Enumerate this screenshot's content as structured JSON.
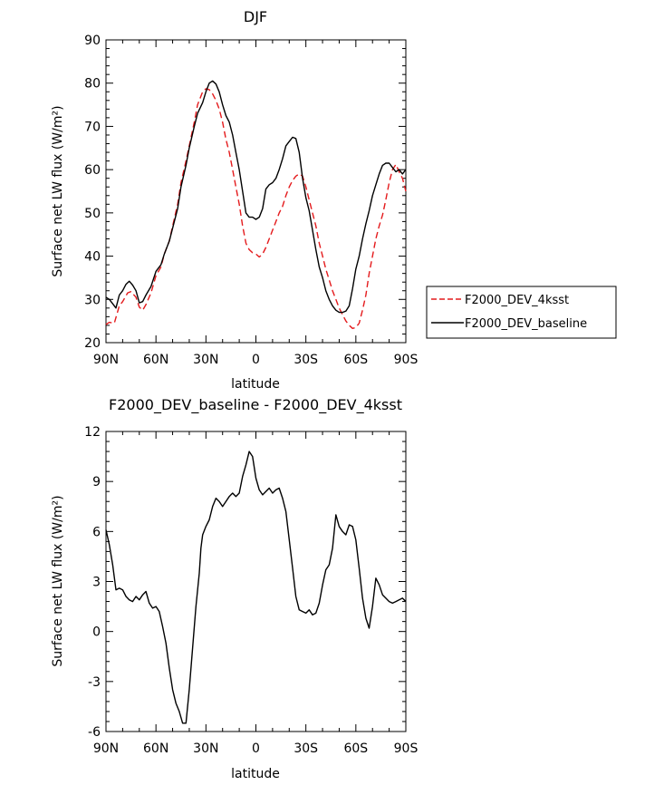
{
  "chart_data": [
    {
      "type": "line",
      "title": "DJF",
      "xlabel": "latitude",
      "ylabel": "Surface net LW flux (W/m²)",
      "ylim": [
        20,
        90
      ],
      "yticks": [
        20,
        30,
        40,
        50,
        60,
        70,
        80,
        90
      ],
      "xlim": [
        90,
        -90
      ],
      "xticks": [
        90,
        60,
        30,
        0,
        -30,
        -60,
        -90
      ],
      "xtick_labels": [
        "90N",
        "60N",
        "30N",
        "0",
        "30S",
        "60S",
        "90S"
      ],
      "legend_placement": "right",
      "series": [
        {
          "name": "F2000_DEV_4ksst",
          "color": "#e41a1c",
          "dash": "dashed",
          "x": [
            90,
            88,
            85,
            82,
            80,
            77,
            75,
            72,
            70,
            68,
            66,
            63,
            60,
            57,
            55,
            52,
            50,
            47,
            45,
            42,
            40,
            37,
            35,
            32,
            30,
            28,
            26,
            24,
            22,
            20,
            18,
            16,
            14,
            12,
            10,
            8,
            6,
            4,
            2,
            0,
            -2,
            -4,
            -6,
            -8,
            -10,
            -12,
            -14,
            -16,
            -18,
            -20,
            -22,
            -24,
            -26,
            -28,
            -30,
            -32,
            -34,
            -36,
            -38,
            -40,
            -42,
            -44,
            -46,
            -48,
            -50,
            -52,
            -54,
            -56,
            -58,
            -60,
            -62,
            -64,
            -66,
            -68,
            -70,
            -72,
            -74,
            -76,
            -78,
            -80,
            -82,
            -84,
            -86,
            -88,
            -90
          ],
          "y": [
            24.2,
            24.7,
            24.5,
            28.5,
            29.5,
            31.5,
            31.8,
            30.5,
            28.2,
            27.5,
            28.8,
            31.5,
            35.5,
            37.5,
            40.5,
            43.5,
            47,
            52,
            57,
            62,
            65.5,
            71,
            75,
            78,
            78.7,
            78.5,
            77.5,
            76,
            74,
            71,
            67,
            64,
            60,
            56,
            52,
            47,
            43,
            41.5,
            40.8,
            40.5,
            39.8,
            40.5,
            42,
            44,
            46,
            48,
            50,
            51.5,
            54,
            56,
            57.5,
            58.5,
            59,
            58.5,
            56,
            53,
            50,
            47,
            43,
            40,
            37,
            34.5,
            32,
            30,
            28,
            26.5,
            25,
            24,
            23.3,
            23.5,
            24.5,
            27.5,
            31,
            36,
            40,
            44,
            47,
            49.5,
            53,
            57,
            60,
            61.2,
            59.5,
            58,
            55
          ]
        },
        {
          "name": "F2000_DEV_baseline",
          "color": "#000000",
          "dash": "solid",
          "x": [
            90,
            88,
            86,
            84,
            82,
            80,
            78,
            76,
            74,
            72,
            70,
            68,
            66,
            63,
            60,
            57,
            55,
            52,
            50,
            47,
            45,
            42,
            40,
            37,
            35,
            32,
            30,
            28,
            26,
            24,
            22,
            20,
            18,
            16,
            14,
            12,
            10,
            8,
            6,
            4,
            2,
            0,
            -2,
            -4,
            -6,
            -8,
            -10,
            -12,
            -14,
            -16,
            -18,
            -20,
            -22,
            -24,
            -26,
            -28,
            -30,
            -32,
            -34,
            -36,
            -38,
            -40,
            -42,
            -44,
            -46,
            -48,
            -50,
            -52,
            -54,
            -56,
            -58,
            -60,
            -62,
            -64,
            -66,
            -68,
            -70,
            -72,
            -74,
            -76,
            -78,
            -80,
            -82,
            -84,
            -86,
            -88,
            -90
          ],
          "y": [
            30.5,
            30,
            29,
            28,
            31,
            32,
            33.5,
            34.2,
            33.3,
            32,
            29.2,
            29.5,
            31,
            33,
            36.5,
            38,
            40.5,
            43.5,
            46.5,
            51,
            56,
            61,
            65,
            70,
            73,
            75.5,
            78,
            80,
            80.5,
            79.8,
            78,
            75,
            72.5,
            71,
            68,
            64,
            60,
            55,
            50,
            49,
            49,
            48.5,
            49,
            51,
            55.5,
            56.5,
            57,
            58,
            60,
            62.5,
            65.5,
            66.5,
            67.5,
            67.2,
            64,
            58,
            53.5,
            50.5,
            46,
            41.5,
            37.5,
            35,
            32,
            30,
            28.5,
            27.5,
            27,
            27,
            27.3,
            28.5,
            32.5,
            37,
            40,
            44,
            47.5,
            50.5,
            54,
            56.5,
            59,
            61,
            61.5,
            61.5,
            60.5,
            59.5,
            60,
            59,
            60
          ]
        }
      ]
    },
    {
      "type": "line",
      "title": "F2000_DEV_baseline - F2000_DEV_4ksst",
      "xlabel": "latitude",
      "ylabel": "Surface net LW flux (W/m²)",
      "ylim": [
        -6,
        12
      ],
      "yticks": [
        -6,
        -3,
        0,
        3,
        6,
        9,
        12
      ],
      "xlim": [
        90,
        -90
      ],
      "xticks": [
        90,
        60,
        30,
        0,
        -30,
        -60,
        -90
      ],
      "xtick_labels": [
        "90N",
        "60N",
        "30N",
        "0",
        "30S",
        "60S",
        "90S"
      ],
      "series": [
        {
          "color": "#000000",
          "dash": "solid",
          "x": [
            90,
            88,
            86,
            84,
            82,
            80,
            78,
            76,
            74,
            72,
            70,
            68,
            66,
            64,
            62,
            60,
            58,
            56,
            54,
            52,
            50,
            48,
            46,
            44,
            42,
            40,
            38,
            36,
            34,
            33,
            32,
            30,
            28,
            26,
            24,
            22,
            20,
            18,
            16,
            14,
            12,
            10,
            8,
            6,
            4,
            2,
            0,
            -2,
            -4,
            -6,
            -8,
            -10,
            -12,
            -14,
            -16,
            -18,
            -20,
            -22,
            -24,
            -26,
            -28,
            -30,
            -32,
            -34,
            -36,
            -38,
            -40,
            -42,
            -44,
            -46,
            -48,
            -50,
            -52,
            -54,
            -56,
            -58,
            -60,
            -62,
            -64,
            -66,
            -68,
            -70,
            -72,
            -74,
            -76,
            -78,
            -80,
            -82,
            -84,
            -86,
            -88,
            -90
          ],
          "y": [
            6.1,
            5.2,
            4,
            2.5,
            2.6,
            2.5,
            2.1,
            1.9,
            1.8,
            2.1,
            1.9,
            2.2,
            2.4,
            1.7,
            1.4,
            1.5,
            1.2,
            0.3,
            -0.7,
            -2.2,
            -3.5,
            -4.3,
            -4.8,
            -5.5,
            -5.5,
            -3.5,
            -1,
            1.5,
            3.5,
            5,
            5.8,
            6.3,
            6.7,
            7.5,
            8,
            7.8,
            7.5,
            7.8,
            8.1,
            8.3,
            8.1,
            8.3,
            9.3,
            10,
            10.8,
            10.5,
            9.2,
            8.5,
            8.2,
            8.4,
            8.6,
            8.3,
            8.5,
            8.6,
            8,
            7.2,
            5.5,
            3.8,
            2.1,
            1.3,
            1.2,
            1.1,
            1.3,
            1,
            1.1,
            1.7,
            2.8,
            3.7,
            4,
            5,
            7,
            6.3,
            6,
            5.8,
            6.4,
            6.3,
            5.5,
            3.8,
            2,
            0.8,
            0.2,
            1.5,
            3.2,
            2.8,
            2.2,
            2,
            1.8,
            1.7,
            1.8,
            1.9,
            2,
            1.8
          ]
        }
      ]
    }
  ]
}
